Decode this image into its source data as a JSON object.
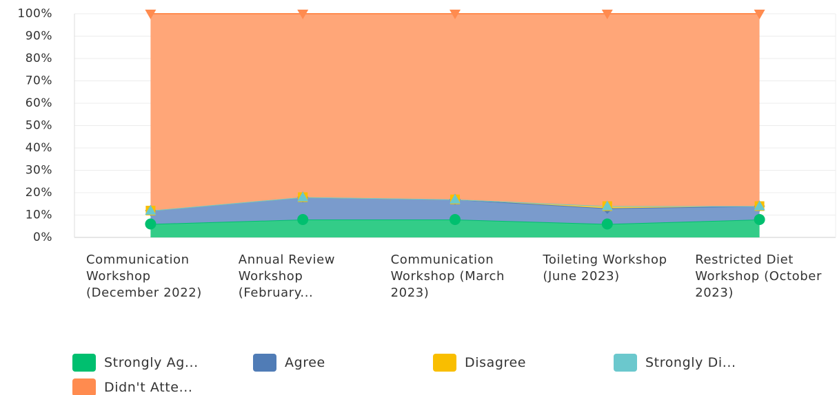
{
  "chart_data": {
    "type": "stacked_area",
    "categories": [
      "Communication Workshop (December 2022)",
      "Annual Review Workshop (February...",
      "Communication Workshop (March 2023)",
      "Toileting Workshop (June 2023)",
      "Restricted Diet Workshop (October 2023)"
    ],
    "series": [
      {
        "name": "Strongly Ag...",
        "color": "#00bf6f",
        "area_color": "#33cc88",
        "marker": "circle",
        "values": [
          6,
          8,
          8,
          6,
          8
        ]
      },
      {
        "name": "Agree",
        "color": "#507cb6",
        "area_color": "#7a9bcc",
        "marker": "diamond",
        "values": [
          6,
          10,
          9,
          7,
          6
        ]
      },
      {
        "name": "Disagree",
        "color": "#f9be00",
        "area_color": "#f9cc40",
        "marker": "square",
        "values": [
          0,
          0,
          0,
          1,
          0
        ]
      },
      {
        "name": "Strongly Di...",
        "color": "#6bc8cd",
        "area_color": "#8cd6da",
        "marker": "triangle",
        "values": [
          0,
          0,
          0,
          0,
          0
        ]
      },
      {
        "name": "Didn't Atte...",
        "color": "#ff8b4f",
        "area_color": "#ffa678",
        "marker": "triangle-down",
        "values": [
          88,
          82,
          83,
          86,
          86
        ]
      }
    ],
    "ylim": [
      0,
      100
    ],
    "yticks": [
      {
        "value": 0,
        "label": "0%"
      },
      {
        "value": 10,
        "label": "10%"
      },
      {
        "value": 20,
        "label": "20%"
      },
      {
        "value": 30,
        "label": "30%"
      },
      {
        "value": 40,
        "label": "40%"
      },
      {
        "value": 50,
        "label": "50%"
      },
      {
        "value": 60,
        "label": "60%"
      },
      {
        "value": 70,
        "label": "70%"
      },
      {
        "value": 80,
        "label": "80%"
      },
      {
        "value": 90,
        "label": "90%"
      },
      {
        "value": 100,
        "label": "100%"
      }
    ],
    "grid": true
  }
}
